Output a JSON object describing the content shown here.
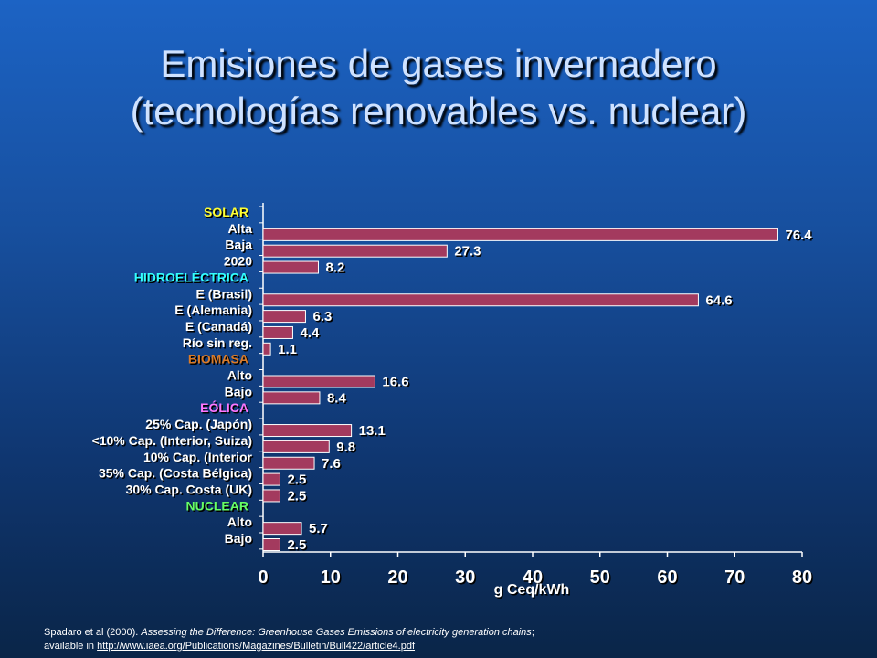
{
  "slide": {
    "title_line1": "Emisiones de gases invernadero",
    "title_line2": "(tecnologías renovables vs. nuclear)"
  },
  "citation": {
    "authors": "Spadaro et al (2000).",
    "work": "Assessing the Difference: Greenhouse Gases Emissions of electricity generation chains",
    "after_work": ";",
    "available_prefix": "available in",
    "link": "http://www.iaea.org/Publications/Magazines/Bulletin/Bull422/article4.pdf"
  },
  "colors": {
    "bar": "#a33a5e",
    "axis": "#ffffff",
    "category_text": "#ffffff",
    "solar": "#ffff33",
    "hidro": "#33ffff",
    "biomasa": "#d97b2a",
    "eolica": "#ff77ff",
    "nuclear": "#66ff66"
  },
  "chart_data": {
    "type": "bar",
    "orientation": "horizontal",
    "xlabel": "g Ceq/kWh",
    "xlim": [
      0,
      80
    ],
    "xticks": [
      "0",
      "10",
      "20",
      "30",
      "40",
      "50",
      "60",
      "70",
      "80"
    ],
    "grid": false,
    "rows": [
      {
        "kind": "group",
        "label": "SOLAR",
        "color_key": "solar"
      },
      {
        "kind": "bar",
        "label": "Alta",
        "value": 76.4,
        "value_label": "76.4"
      },
      {
        "kind": "bar",
        "label": "Baja",
        "value": 27.3,
        "value_label": "27.3"
      },
      {
        "kind": "bar",
        "label": "2020",
        "value": 8.2,
        "value_label": "8.2"
      },
      {
        "kind": "group",
        "label": "HIDROELÉCTRICA",
        "color_key": "hidro"
      },
      {
        "kind": "bar",
        "label": "E (Brasil)",
        "value": 64.6,
        "value_label": "64.6"
      },
      {
        "kind": "bar",
        "label": "E (Alemania)",
        "value": 6.3,
        "value_label": "6.3"
      },
      {
        "kind": "bar",
        "label": "E (Canadá)",
        "value": 4.4,
        "value_label": "4.4"
      },
      {
        "kind": "bar",
        "label": "Río sin reg.",
        "value": 1.1,
        "value_label": "1.1"
      },
      {
        "kind": "group",
        "label": "BIOMASA",
        "color_key": "biomasa"
      },
      {
        "kind": "bar",
        "label": "Alto",
        "value": 16.6,
        "value_label": "16.6"
      },
      {
        "kind": "bar",
        "label": "Bajo",
        "value": 8.4,
        "value_label": "8.4"
      },
      {
        "kind": "group",
        "label": "EÓLICA",
        "color_key": "eolica"
      },
      {
        "kind": "bar",
        "label": "25% Cap. (Japón)",
        "value": 13.1,
        "value_label": "13.1"
      },
      {
        "kind": "bar",
        "label": "<10% Cap. (Interior, Suiza)",
        "value": 9.8,
        "value_label": "9.8"
      },
      {
        "kind": "bar",
        "label": "10% Cap. (Interior",
        "value": 7.6,
        "value_label": "7.6"
      },
      {
        "kind": "bar",
        "label": "35% Cap. (Costa Bélgica)",
        "value": 2.5,
        "value_label": "2.5"
      },
      {
        "kind": "bar",
        "label": "30% Cap. Costa (UK)",
        "value": 2.5,
        "value_label": "2.5"
      },
      {
        "kind": "group",
        "label": "NUCLEAR",
        "color_key": "nuclear"
      },
      {
        "kind": "bar",
        "label": "Alto",
        "value": 5.7,
        "value_label": "5.7"
      },
      {
        "kind": "bar",
        "label": "Bajo",
        "value": 2.5,
        "value_label": "2.5"
      }
    ]
  }
}
